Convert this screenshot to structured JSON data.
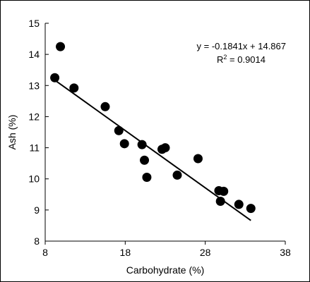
{
  "chart_data": {
    "type": "scatter",
    "title": "",
    "xlabel": "Carbohydrate (%)",
    "ylabel": "Ash (%)",
    "xlim": [
      8,
      38
    ],
    "ylim": [
      8,
      15
    ],
    "x_ticks": [
      8,
      18,
      28,
      38
    ],
    "y_ticks": [
      8,
      9,
      10,
      11,
      12,
      13,
      14,
      15
    ],
    "grid": false,
    "legend": "none",
    "points": [
      {
        "x": 9.2,
        "y": 13.25
      },
      {
        "x": 9.9,
        "y": 14.25
      },
      {
        "x": 11.6,
        "y": 12.92
      },
      {
        "x": 15.5,
        "y": 12.32
      },
      {
        "x": 17.2,
        "y": 11.55
      },
      {
        "x": 17.9,
        "y": 11.13
      },
      {
        "x": 20.1,
        "y": 11.1
      },
      {
        "x": 20.4,
        "y": 10.6
      },
      {
        "x": 20.7,
        "y": 10.05
      },
      {
        "x": 22.6,
        "y": 10.95
      },
      {
        "x": 23.0,
        "y": 11.0
      },
      {
        "x": 24.5,
        "y": 10.12
      },
      {
        "x": 27.1,
        "y": 10.65
      },
      {
        "x": 29.7,
        "y": 9.62
      },
      {
        "x": 29.9,
        "y": 9.28
      },
      {
        "x": 30.3,
        "y": 9.6
      },
      {
        "x": 32.2,
        "y": 9.18
      },
      {
        "x": 33.7,
        "y": 9.05
      }
    ],
    "trendline": {
      "slope": -0.1841,
      "intercept": 14.867,
      "x_range": [
        9.2,
        33.7
      ],
      "equation": "y = -0.1841x + 14.867",
      "r2_prefix": "R",
      "r2_value": "2",
      "r2_suffix": " = 0.9014"
    },
    "colors": {
      "marker": "#000000",
      "line": "#000000",
      "axis": "#000000"
    }
  }
}
